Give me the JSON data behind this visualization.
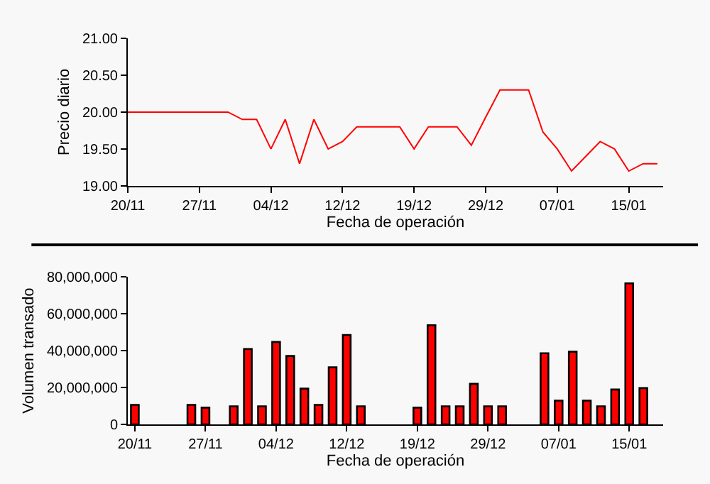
{
  "chart_data": [
    {
      "type": "line",
      "ylabel": "Precio diario",
      "xlabel": "Fecha de operación",
      "categories": [
        "20/11",
        null,
        null,
        null,
        null,
        "27/11",
        null,
        null,
        null,
        null,
        "04/12",
        null,
        null,
        null,
        null,
        "12/12",
        null,
        null,
        null,
        null,
        "19/12",
        null,
        null,
        null,
        null,
        "29/12",
        null,
        null,
        null,
        null,
        "07/01",
        null,
        null,
        null,
        null,
        "15/01",
        null,
        null
      ],
      "series": [
        {
          "color": "#ff0000",
          "values": [
            20.0,
            20.0,
            20.0,
            20.0,
            20.0,
            20.0,
            20.0,
            20.0,
            19.9,
            19.9,
            19.5,
            19.9,
            19.3,
            19.9,
            19.5,
            19.6,
            19.8,
            19.8,
            19.8,
            19.8,
            19.5,
            19.8,
            19.8,
            19.8,
            19.55,
            19.93,
            20.3,
            20.3,
            20.3,
            19.73,
            19.5,
            19.2,
            19.4,
            19.6,
            19.5,
            19.2,
            19.3,
            19.3
          ]
        }
      ],
      "ylim": [
        19,
        21
      ],
      "yticks": [
        {
          "value": 19,
          "label": "19.00"
        },
        {
          "value": 19.5,
          "label": "19.50"
        },
        {
          "value": 20,
          "label": "20.00"
        },
        {
          "value": 20.5,
          "label": "20.50"
        },
        {
          "value": 21,
          "label": "21.00"
        }
      ],
      "marker": "none",
      "line_style": "solid"
    },
    {
      "type": "bar",
      "ylabel": "Volumen transado",
      "xlabel": "Fecha de operación",
      "categories": [
        "20/11",
        null,
        null,
        null,
        null,
        "27/11",
        null,
        null,
        null,
        null,
        "04/12",
        null,
        null,
        null,
        null,
        "12/12",
        null,
        null,
        null,
        null,
        "19/12",
        null,
        null,
        null,
        null,
        "29/12",
        null,
        null,
        null,
        null,
        "07/01",
        null,
        null,
        null,
        null,
        "15/01",
        null,
        null
      ],
      "series": [
        {
          "color": "#ff0000",
          "values": [
            10600000,
            0,
            0,
            0,
            10600000,
            9100000,
            0,
            9800000,
            40900000,
            9800000,
            44700000,
            37100000,
            19400000,
            10600000,
            31000000,
            48500000,
            9800000,
            0,
            0,
            0,
            9100000,
            53800000,
            9800000,
            9800000,
            22000000,
            9800000,
            9800000,
            0,
            0,
            38600000,
            12900000,
            39400000,
            12900000,
            9800000,
            18900000,
            76500000,
            19700000,
            0
          ]
        }
      ],
      "ylim": [
        0,
        80000000
      ],
      "yticks": [
        0,
        {
          "value": 20000000,
          "label": "20,000,000"
        },
        {
          "value": 40000000,
          "label": "40,000,000"
        },
        {
          "value": 60000000,
          "label": "60,000,000"
        },
        {
          "value": 80000000,
          "label": "80,000,000"
        }
      ]
    }
  ]
}
